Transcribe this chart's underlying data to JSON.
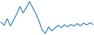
{
  "y": [
    6.0,
    5.2,
    6.8,
    5.0,
    6.5,
    8.0,
    9.8,
    8.2,
    9.5,
    11.0,
    9.5,
    8.0,
    6.2,
    4.0,
    3.2,
    4.8,
    3.8,
    4.5,
    5.2,
    4.6,
    5.3,
    4.8,
    5.4,
    5.0,
    5.6,
    5.1,
    5.7,
    5.3,
    5.8,
    5.4
  ],
  "line_color": "#2b7bba",
  "line_width": 0.8,
  "background_color": "#ffffff"
}
